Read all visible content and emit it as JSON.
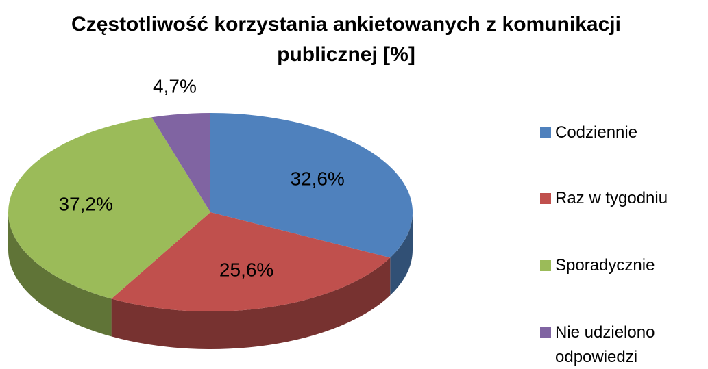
{
  "chart_data": {
    "type": "pie",
    "title": "Częstotliwość korzystania ankietowanych z komunikacji publicznej [%]",
    "categories": [
      "Codziennie",
      "Raz w tygodniu",
      "Sporadycznie",
      "Nie udzielono odpowiedzi"
    ],
    "values": [
      32.6,
      25.6,
      37.2,
      4.7
    ],
    "value_labels": [
      "32,6%",
      "25,6%",
      "37,2%",
      "4,7%"
    ],
    "colors": [
      "#4f81bd",
      "#c0504d",
      "#9bbb59",
      "#8064a2"
    ],
    "legend": "right"
  }
}
